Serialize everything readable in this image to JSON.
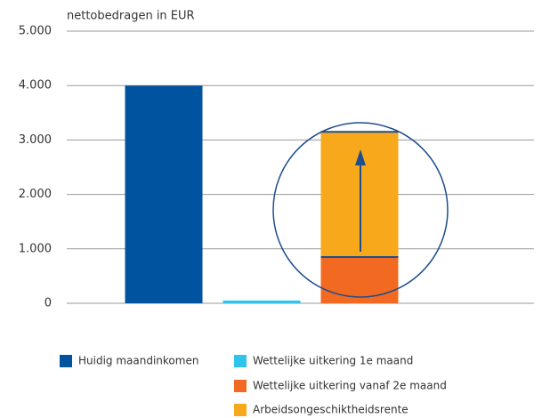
{
  "chart_data": {
    "type": "stacked_bar",
    "y_axis_label": "nettobedragen in EUR",
    "categories": [
      null,
      null,
      null
    ],
    "series": [
      {
        "name": "Huidig maandinkomen",
        "color": "#00539f",
        "values": [
          4000,
          null,
          null
        ]
      },
      {
        "name": "Wettelijke uitkering 1e maand",
        "color": "#2ec4ec",
        "values": [
          null,
          50,
          null
        ]
      },
      {
        "name": "Wettelijke uitkering vanaf 2e maand",
        "color": "#f26922",
        "values": [
          null,
          null,
          850
        ]
      },
      {
        "name": "Arbeidsongeschiktheidsrente",
        "color": "#f7a81b",
        "values": [
          null,
          null,
          2300
        ]
      }
    ],
    "ylim": [
      0,
      5000
    ],
    "yticks": [
      0,
      {
        "value": 1000,
        "label": "1.000"
      },
      {
        "value": 2000,
        "label": "2.000"
      },
      {
        "value": 3000,
        "label": "3.000"
      },
      {
        "value": 4000,
        "label": "4.000"
      },
      {
        "value": 5000,
        "label": "5.000"
      }
    ],
    "grid": true
  }
}
